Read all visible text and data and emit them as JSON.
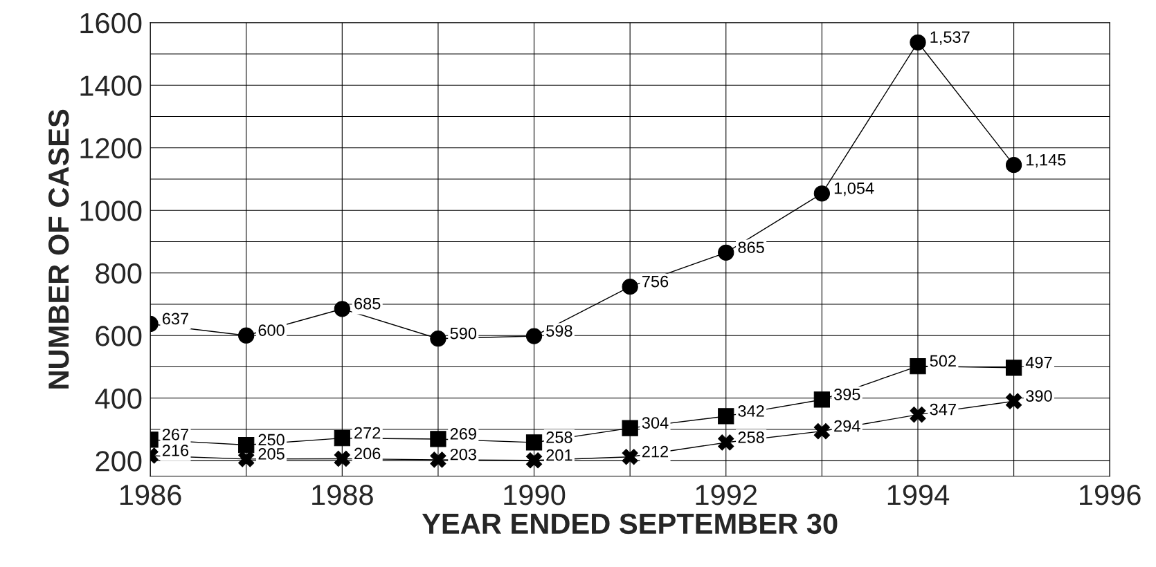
{
  "chart_data": {
    "type": "line",
    "xlabel": "YEAR ENDED SEPTEMBER 30",
    "ylabel": "NUMBER OF CASES",
    "x": [
      1986,
      1987,
      1988,
      1989,
      1990,
      1991,
      1992,
      1993,
      1994,
      1995
    ],
    "series": [
      {
        "color": "#000000",
        "marker": "circle",
        "values": [
          637,
          600,
          685,
          590,
          598,
          756,
          865,
          1054,
          1537,
          1145
        ],
        "value_labels": [
          "637",
          "600",
          "685",
          "590",
          "598",
          "756",
          "865",
          "1,054",
          "1,537",
          "1,145"
        ]
      },
      {
        "color": "#000000",
        "marker": "square",
        "values": [
          267,
          250,
          272,
          269,
          258,
          304,
          342,
          395,
          502,
          497
        ],
        "value_labels": [
          "267",
          "250",
          "272",
          "269",
          "258",
          "304",
          "342",
          "395",
          "502",
          "497"
        ]
      },
      {
        "color": "#000000",
        "marker": "cross",
        "values": [
          216,
          205,
          206,
          203,
          201,
          212,
          258,
          294,
          347,
          390
        ],
        "value_labels": [
          "216",
          "205",
          "206",
          "203",
          "201",
          "212",
          "258",
          "294",
          "347",
          "390"
        ]
      }
    ],
    "xlim": [
      1986,
      1996
    ],
    "xticks": [
      1986,
      {
        "value": 1987,
        "label": null
      },
      1988,
      {
        "value": 1989,
        "label": null
      },
      1990,
      {
        "value": 1991,
        "label": null
      },
      1992,
      {
        "value": 1993,
        "label": null
      },
      1994,
      {
        "value": 1995,
        "label": null
      },
      1996
    ],
    "ylim": [
      150,
      1600
    ],
    "yticks": [
      200,
      {
        "value": 300,
        "label": null
      },
      400,
      {
        "value": 500,
        "label": null
      },
      600,
      {
        "value": 700,
        "label": null
      },
      800,
      {
        "value": 900,
        "label": null
      },
      1000,
      {
        "value": 1100,
        "label": null
      },
      1200,
      {
        "value": 1300,
        "label": null
      },
      1400,
      {
        "value": 1500,
        "label": null
      },
      1600
    ],
    "grid": true,
    "line_style": "solid"
  }
}
